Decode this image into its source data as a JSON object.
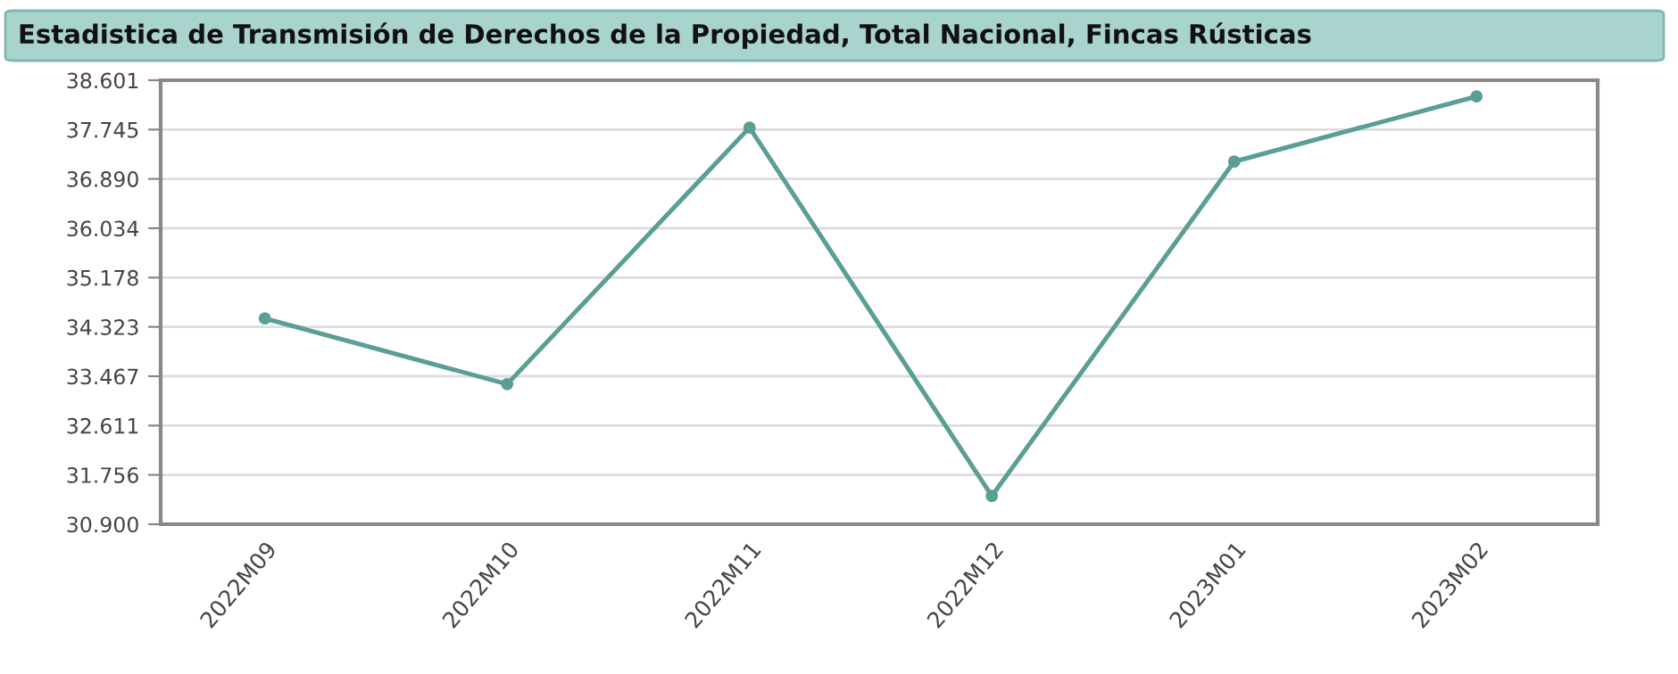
{
  "chart_data": {
    "type": "line",
    "title": "Estadistica de Transmisión de Derechos de la Propiedad, Total Nacional, Fincas Rústicas",
    "categories": [
      "2022M09",
      "2022M10",
      "2022M11",
      "2022M12",
      "2023M01",
      "2023M02"
    ],
    "series": [
      {
        "color": "#5a9e94",
        "values": [
          34470,
          33330,
          37780,
          31390,
          37190,
          38320
        ]
      }
    ],
    "ylim": [
      30900,
      38601
    ],
    "yticks": [
      {
        "value": 30900,
        "label": "30.900"
      },
      {
        "value": 31756,
        "label": "31.756"
      },
      {
        "value": 32611,
        "label": "32.611"
      },
      {
        "value": 33467,
        "label": "33.467"
      },
      {
        "value": 34323,
        "label": "34.323"
      },
      {
        "value": 35178,
        "label": "35.178"
      },
      {
        "value": 36034,
        "label": "36.034"
      },
      {
        "value": 36890,
        "label": "36.890"
      },
      {
        "value": 37745,
        "label": "37.745"
      },
      {
        "value": 38601,
        "label": "38.601"
      }
    ],
    "grid": "y",
    "marker": "circle",
    "line_style": "solid"
  }
}
